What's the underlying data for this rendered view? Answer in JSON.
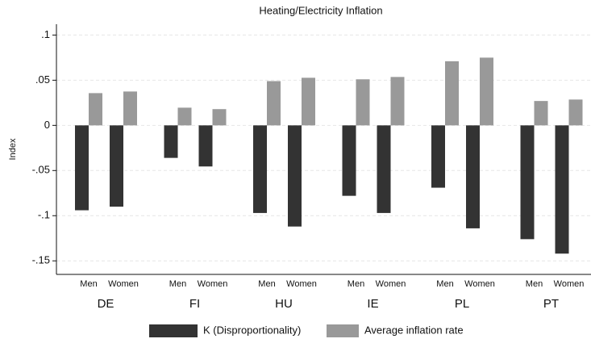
{
  "chart_data": {
    "type": "bar",
    "title": "Heating/Electricity Inflation",
    "y_label": "Index",
    "groups": [
      "DE",
      "FI",
      "HU",
      "IE",
      "PL",
      "PT"
    ],
    "categories": [
      "Men",
      "Women",
      "Men",
      "Women",
      "Men",
      "Women",
      "Men",
      "Women",
      "Men",
      "Women",
      "Men",
      "Women"
    ],
    "series": [
      {
        "name": "K (Disproportionality)",
        "color": "#333333",
        "values": [
          -0.094,
          -0.09,
          -0.036,
          -0.0455,
          -0.097,
          -0.112,
          -0.078,
          -0.097,
          -0.069,
          -0.114,
          -0.126,
          -0.142
        ]
      },
      {
        "name": "Average inflation rate",
        "color": "#999999",
        "values": [
          0.0357,
          0.0375,
          0.0196,
          0.018,
          0.049,
          0.0527,
          0.051,
          0.0536,
          0.071,
          0.075,
          0.027,
          0.0286
        ]
      }
    ],
    "ylim": [
      -0.165,
      0.112
    ],
    "yticks": [
      {
        "value": 0.1,
        "label": ".1"
      },
      {
        "value": 0.05,
        "label": ".05"
      },
      0,
      {
        "value": -0.05,
        "label": "-.05"
      },
      {
        "value": -0.1,
        "label": "-.1"
      },
      {
        "value": -0.15,
        "label": "-.15"
      }
    ],
    "grid": true,
    "legend": "bottom"
  }
}
